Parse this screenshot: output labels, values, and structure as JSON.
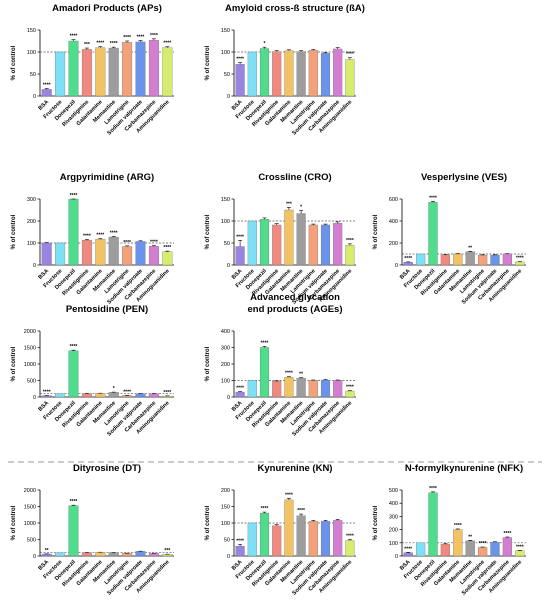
{
  "chart_data": {
    "type": "bar",
    "categories": [
      "BSA",
      "Fructose",
      "Donepezil",
      "Rivastigmine",
      "Galantamine",
      "Memantine",
      "Lamotrigine",
      "Sodium valproate",
      "Carbamazepine",
      "Aminoguanidine"
    ],
    "colors": [
      "#9a84e2",
      "#7ee0f6",
      "#4fdc8c",
      "#f08a80",
      "#f2c265",
      "#9d9d9d",
      "#f2a17a",
      "#6b93ec",
      "#d47ed2",
      "#d6ec6e"
    ],
    "ylabel": "% of control",
    "reference_line": 100,
    "panels": [
      {
        "title": "Amadori Products (APs)",
        "ylim": [
          0,
          150
        ],
        "yticks": [
          0,
          50,
          100,
          150
        ],
        "values": [
          15,
          100,
          125,
          106,
          110,
          109,
          122,
          123,
          127,
          110
        ],
        "errors": [
          2,
          0,
          3,
          3,
          2,
          2,
          3,
          3,
          3,
          2
        ],
        "stars": [
          "****",
          "",
          "****",
          "***",
          "****",
          "****",
          "****",
          "****",
          "****",
          "****"
        ]
      },
      {
        "title": "Amyloid cross-ß structure (ßA)",
        "ylim": [
          0,
          150
        ],
        "yticks": [
          0,
          50,
          100,
          150
        ],
        "values": [
          72,
          100,
          108,
          101,
          103,
          101,
          104,
          97,
          107,
          83
        ],
        "errors": [
          4,
          0,
          3,
          2,
          2,
          2,
          2,
          2,
          3,
          4
        ],
        "stars": [
          "****",
          "",
          "*",
          "",
          "",
          "",
          "",
          "",
          "",
          "****"
        ]
      },
      {
        "title": "Argpyrimidine (ARG)",
        "ylim": [
          0,
          300
        ],
        "yticks": [
          0,
          100,
          200,
          300
        ],
        "values": [
          100,
          100,
          300,
          113,
          117,
          127,
          84,
          107,
          85,
          60
        ],
        "errors": [
          2,
          0,
          4,
          3,
          3,
          3,
          3,
          3,
          3,
          3
        ],
        "stars": [
          "",
          "",
          "****",
          "****",
          "****",
          "****",
          "****",
          "",
          "****",
          "****"
        ]
      },
      {
        "title": "Crossline (CRO)",
        "ylim": [
          0,
          150
        ],
        "yticks": [
          0,
          50,
          100,
          150
        ],
        "values": [
          42,
          100,
          104,
          91,
          125,
          117,
          91,
          91,
          95,
          45
        ],
        "errors": [
          14,
          0,
          3,
          3,
          6,
          7,
          2,
          2,
          3,
          3
        ],
        "stars": [
          "****",
          "",
          "",
          "",
          "***",
          "*",
          "",
          "",
          "",
          "****"
        ]
      },
      {
        "title": "Vesperlysine (VES)",
        "ylim": [
          0,
          600
        ],
        "yticks": [
          0,
          200,
          400,
          600
        ],
        "values": [
          25,
          100,
          570,
          92,
          100,
          120,
          90,
          90,
          100,
          28
        ],
        "errors": [
          3,
          0,
          8,
          3,
          4,
          4,
          3,
          3,
          3,
          3
        ],
        "stars": [
          "****",
          "",
          "****",
          "",
          "",
          "**",
          "",
          "",
          "",
          "****"
        ]
      },
      {
        "title": "Pentosidine (PEN)",
        "ylim": [
          0,
          2000
        ],
        "yticks": [
          0,
          500,
          1000,
          1500,
          2000
        ],
        "values": [
          40,
          100,
          1400,
          100,
          110,
          140,
          45,
          100,
          100,
          30
        ],
        "errors": [
          5,
          0,
          20,
          5,
          5,
          8,
          5,
          5,
          5,
          5
        ],
        "stars": [
          "****",
          "",
          "****",
          "",
          "",
          "*",
          "****",
          "",
          "",
          "****"
        ]
      },
      {
        "title": "Advanced glycation\nend products (AGEs)",
        "ylim": [
          0,
          400
        ],
        "yticks": [
          0,
          100,
          200,
          300,
          400
        ],
        "values": [
          30,
          100,
          300,
          95,
          120,
          114,
          100,
          103,
          100,
          36
        ],
        "errors": [
          3,
          0,
          6,
          3,
          3,
          4,
          3,
          3,
          3,
          3
        ],
        "stars": [
          "****",
          "",
          "****",
          "",
          "****",
          "**",
          "",
          "",
          "",
          "****"
        ]
      },
      {
        "title": "Dityrosine (DT)",
        "ylim": [
          0,
          2000
        ],
        "yticks": [
          0,
          500,
          1000,
          1500,
          2000
        ],
        "values": [
          60,
          100,
          1520,
          100,
          110,
          100,
          80,
          140,
          80,
          50
        ],
        "errors": [
          5,
          0,
          20,
          5,
          5,
          5,
          5,
          6,
          5,
          5
        ],
        "stars": [
          "**",
          "",
          "****",
          "",
          "",
          "",
          "",
          "",
          "",
          "***"
        ]
      },
      {
        "title": "Kynurenine (KN)",
        "ylim": [
          0,
          200
        ],
        "yticks": [
          0,
          50,
          100,
          150,
          200
        ],
        "values": [
          30,
          100,
          130,
          92,
          170,
          122,
          105,
          105,
          108,
          47
        ],
        "errors": [
          5,
          0,
          3,
          3,
          5,
          5,
          3,
          3,
          3,
          3
        ],
        "stars": [
          "****",
          "",
          "****",
          "",
          "****",
          "****",
          "",
          "",
          "",
          "****"
        ]
      },
      {
        "title": "N-formylkynurenine (NFK)",
        "ylim": [
          0,
          500
        ],
        "yticks": [
          0,
          100,
          200,
          300,
          400,
          500
        ],
        "values": [
          25,
          100,
          480,
          90,
          200,
          115,
          65,
          105,
          140,
          40
        ],
        "errors": [
          3,
          0,
          6,
          3,
          5,
          4,
          3,
          3,
          4,
          3
        ],
        "stars": [
          "****",
          "",
          "****",
          "",
          "****",
          "**",
          "****",
          "",
          "****",
          "****"
        ]
      }
    ]
  }
}
